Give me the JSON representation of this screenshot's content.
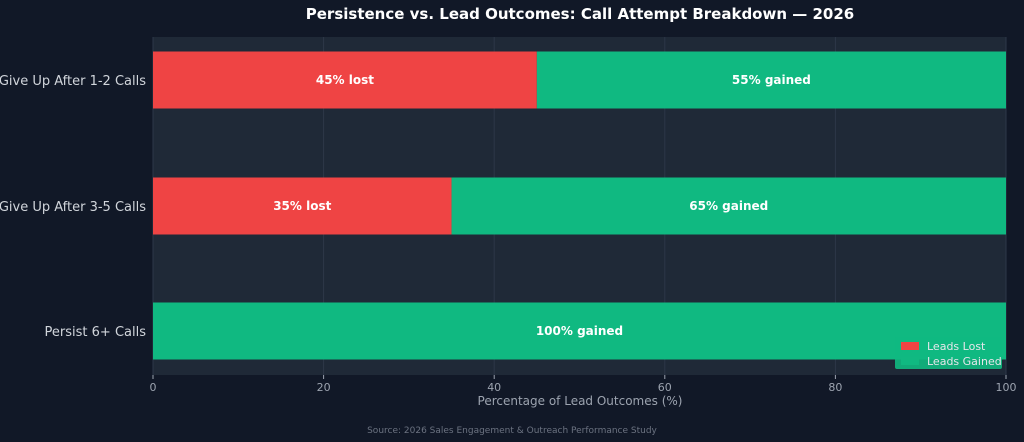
{
  "chart_data": {
    "type": "bar",
    "orientation": "horizontal",
    "stacked": true,
    "title": "Persistence vs. Lead Outcomes: Call Attempt Breakdown — 2026",
    "xlabel": "Percentage of Lead Outcomes (%)",
    "ylabel": "",
    "xlim": [
      0,
      100
    ],
    "xticks": [
      "0",
      "20",
      "40",
      "60",
      "80",
      "100"
    ],
    "categories": [
      "Give Up After 1-2 Calls",
      "Give Up After 3-5 Calls",
      "Persist 6+ Calls"
    ],
    "series": [
      {
        "name": "Leads Lost",
        "color": "#ef4444",
        "values": [
          45,
          35,
          0
        ],
        "labels": [
          "45% lost",
          "35% lost",
          ""
        ]
      },
      {
        "name": "Leads Gained",
        "color": "#10b981",
        "values": [
          55,
          65,
          100
        ],
        "labels": [
          "55% gained",
          "65% gained",
          "100% gained"
        ]
      }
    ],
    "grid": true,
    "legend_position": "bottom-right",
    "source": "Source: 2026 Sales Engagement & Outreach Performance Study"
  },
  "colors": {
    "page_background": "#111827",
    "plot_background": "#1f2937"
  }
}
